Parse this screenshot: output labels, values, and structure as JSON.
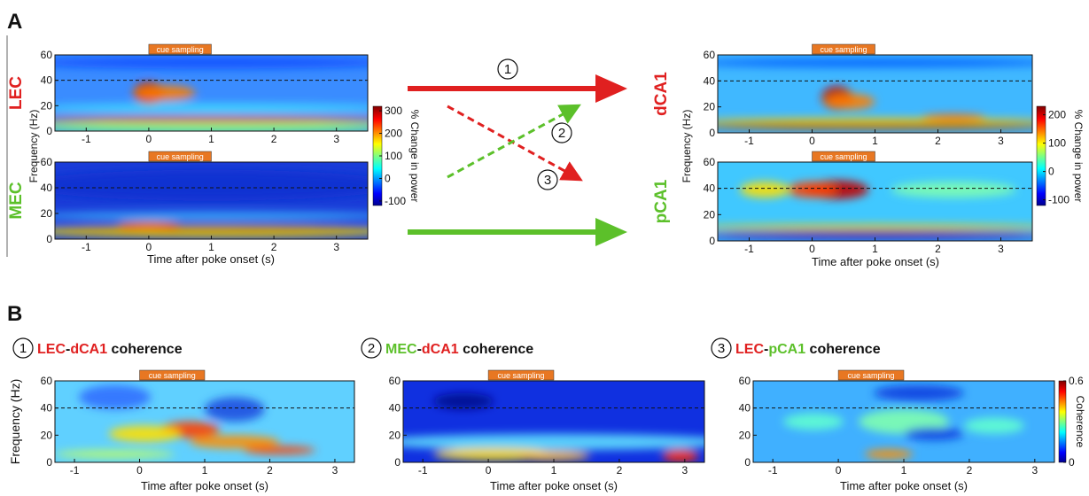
{
  "panel_a": {
    "label": "A",
    "left": {
      "ylabel": "Frequency (Hz)",
      "xlabel": "Time after poke onset (s)",
      "plots": [
        {
          "region": "LEC",
          "region_color": "#e02020",
          "cue": "cue sampling",
          "xlim": [
            -1.5,
            3.5
          ],
          "ylim": [
            0,
            60
          ],
          "xticks": [
            -1,
            0,
            1,
            2,
            3
          ],
          "yticks": [
            0,
            20,
            40,
            60
          ]
        },
        {
          "region": "MEC",
          "region_color": "#5cc02a",
          "cue": "cue sampling",
          "xlim": [
            -1.5,
            3.5
          ],
          "ylim": [
            0,
            60
          ],
          "xticks": [
            -1,
            0,
            1,
            2,
            3
          ],
          "yticks": [
            0,
            20,
            40,
            60
          ]
        }
      ],
      "colorbar": {
        "label": "% Change in power",
        "lim": [
          -120,
          320
        ],
        "ticks": [
          -100,
          0,
          100,
          200,
          300
        ]
      }
    },
    "right": {
      "ylabel": "Frequency (Hz)",
      "xlabel": "Time after poke onset (s)",
      "plots": [
        {
          "region": "dCA1",
          "region_color": "#e02020",
          "cue": "cue sampling",
          "xlim": [
            -1.5,
            3.5
          ],
          "ylim": [
            0,
            60
          ],
          "xticks": [
            -1,
            0,
            1,
            2,
            3
          ],
          "yticks": [
            0,
            20,
            40,
            60
          ]
        },
        {
          "region": "pCA1",
          "region_color": "#5cc02a",
          "cue": "cue sampling",
          "xlim": [
            -1.5,
            3.5
          ],
          "ylim": [
            0,
            60
          ],
          "xticks": [
            -1,
            0,
            1,
            2,
            3
          ],
          "yticks": [
            0,
            20,
            40,
            60
          ]
        }
      ],
      "colorbar": {
        "label": "% Change in power",
        "lim": [
          -120,
          230
        ],
        "ticks": [
          -100,
          0,
          100,
          200
        ]
      }
    },
    "arrows": [
      {
        "number": "1"
      },
      {
        "number": "2"
      },
      {
        "number": "3"
      }
    ]
  },
  "panel_b": {
    "label": "B",
    "ylabel": "Frequency (Hz)",
    "plots": [
      {
        "number": "1",
        "title": [
          {
            "text": "LEC",
            "color": "#e02020"
          },
          {
            "text": "-",
            "color": "#111111"
          },
          {
            "text": "dCA1",
            "color": "#e02020"
          },
          {
            "text": " coherence",
            "color": "#111111"
          }
        ],
        "cue": "cue sampling",
        "xlabel": "Time after poke onset (s)",
        "xlim": [
          -1.3,
          3.3
        ],
        "ylim": [
          0,
          60
        ],
        "xticks": [
          -1,
          0,
          1,
          2,
          3
        ],
        "yticks": [
          0,
          20,
          40,
          60
        ]
      },
      {
        "number": "2",
        "title": [
          {
            "text": "MEC",
            "color": "#5cc02a"
          },
          {
            "text": "-",
            "color": "#111111"
          },
          {
            "text": "dCA1",
            "color": "#e02020"
          },
          {
            "text": " coherence",
            "color": "#111111"
          }
        ],
        "cue": "cue sampling",
        "xlabel": "Time after poke onset (s)",
        "xlim": [
          -1.3,
          3.3
        ],
        "ylim": [
          0,
          60
        ],
        "xticks": [
          -1,
          0,
          1,
          2,
          3
        ],
        "yticks": [
          0,
          20,
          40,
          60
        ]
      },
      {
        "number": "3",
        "title": [
          {
            "text": "LEC",
            "color": "#e02020"
          },
          {
            "text": "-",
            "color": "#111111"
          },
          {
            "text": "pCA1",
            "color": "#5cc02a"
          },
          {
            "text": " coherence",
            "color": "#111111"
          }
        ],
        "cue": "cue sampling",
        "xlabel": "Time after poke onset (s)",
        "xlim": [
          -1.3,
          3.3
        ],
        "ylim": [
          0,
          60
        ],
        "xticks": [
          -1,
          0,
          1,
          2,
          3
        ],
        "yticks": [
          0,
          20,
          40,
          60
        ]
      }
    ],
    "colorbar": {
      "label": "Coherence",
      "lim": [
        0,
        0.6
      ],
      "ticks": [
        0,
        0.6
      ]
    }
  }
}
